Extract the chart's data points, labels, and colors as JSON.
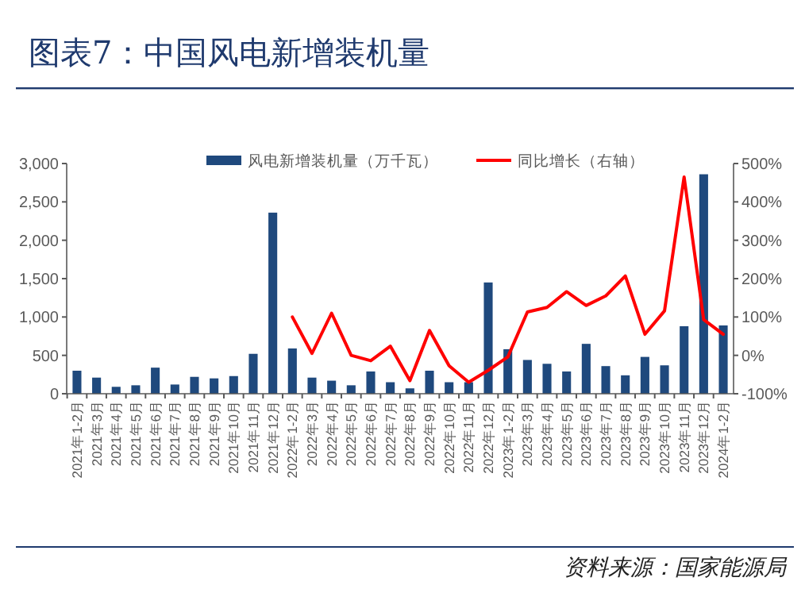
{
  "chart_data": {
    "type": "bar",
    "title": "图表7：中国风电新增装机量",
    "annotations": [
      "资料来源：国家能源局"
    ],
    "categories": [
      "2021年1-2月",
      "2021年3月",
      "2021年4月",
      "2021年5月",
      "2021年6月",
      "2021年7月",
      "2021年8月",
      "2021年9月",
      "2021年10月",
      "2021年11月",
      "2021年12月",
      "2022年1-2月",
      "2022年3月",
      "2022年4月",
      "2022年5月",
      "2022年6月",
      "2022年7月",
      "2022年8月",
      "2022年9月",
      "2022年10月",
      "2022年11月",
      "2022年12月",
      "2023年1-2月",
      "2023年3月",
      "2023年4月",
      "2023年5月",
      "2023年6月",
      "2023年7月",
      "2023年8月",
      "2023年9月",
      "2023年10月",
      "2023年11月",
      "2023年12月",
      "2024年1-2月"
    ],
    "series": [
      {
        "name": "风电新增装机量（万千瓦）",
        "color": "#1f497d",
        "values": [
          300,
          210,
          90,
          110,
          340,
          120,
          220,
          200,
          230,
          520,
          2360,
          590,
          210,
          170,
          110,
          290,
          150,
          70,
          300,
          150,
          150,
          1450,
          580,
          440,
          390,
          290,
          650,
          360,
          240,
          480,
          370,
          880,
          2860,
          890
        ]
      },
      {
        "name": "同比增长（右轴）",
        "type": "line",
        "axis": "y2",
        "color": "#ff0000",
        "values": [
          null,
          null,
          null,
          null,
          null,
          null,
          null,
          null,
          null,
          null,
          null,
          100,
          5,
          110,
          0,
          -14,
          24,
          -66,
          65,
          -27,
          -70,
          -39,
          -4,
          113,
          125,
          166,
          130,
          155,
          207,
          55,
          116,
          465,
          93,
          55
        ]
      }
    ],
    "ylim": [
      0,
      3000
    ],
    "yticks": [
      {
        "value": 0,
        "label": "0"
      },
      {
        "value": 500,
        "label": "500"
      },
      {
        "value": 1000,
        "label": "1,000"
      },
      {
        "value": 1500,
        "label": "1,500"
      },
      {
        "value": 2000,
        "label": "2,000"
      },
      {
        "value": 2500,
        "label": "2,500"
      },
      {
        "value": 3000,
        "label": "3,000"
      }
    ],
    "y2lim": [
      -100,
      500
    ],
    "y2ticks": [
      {
        "value": -100,
        "label": "-100%"
      },
      {
        "value": 0,
        "label": "0%"
      },
      {
        "value": 100,
        "label": "100%"
      },
      {
        "value": 200,
        "label": "200%"
      },
      {
        "value": 300,
        "label": "300%"
      },
      {
        "value": 400,
        "label": "400%"
      },
      {
        "value": 500,
        "label": "500%"
      }
    ],
    "grid": false,
    "legend": "top"
  }
}
